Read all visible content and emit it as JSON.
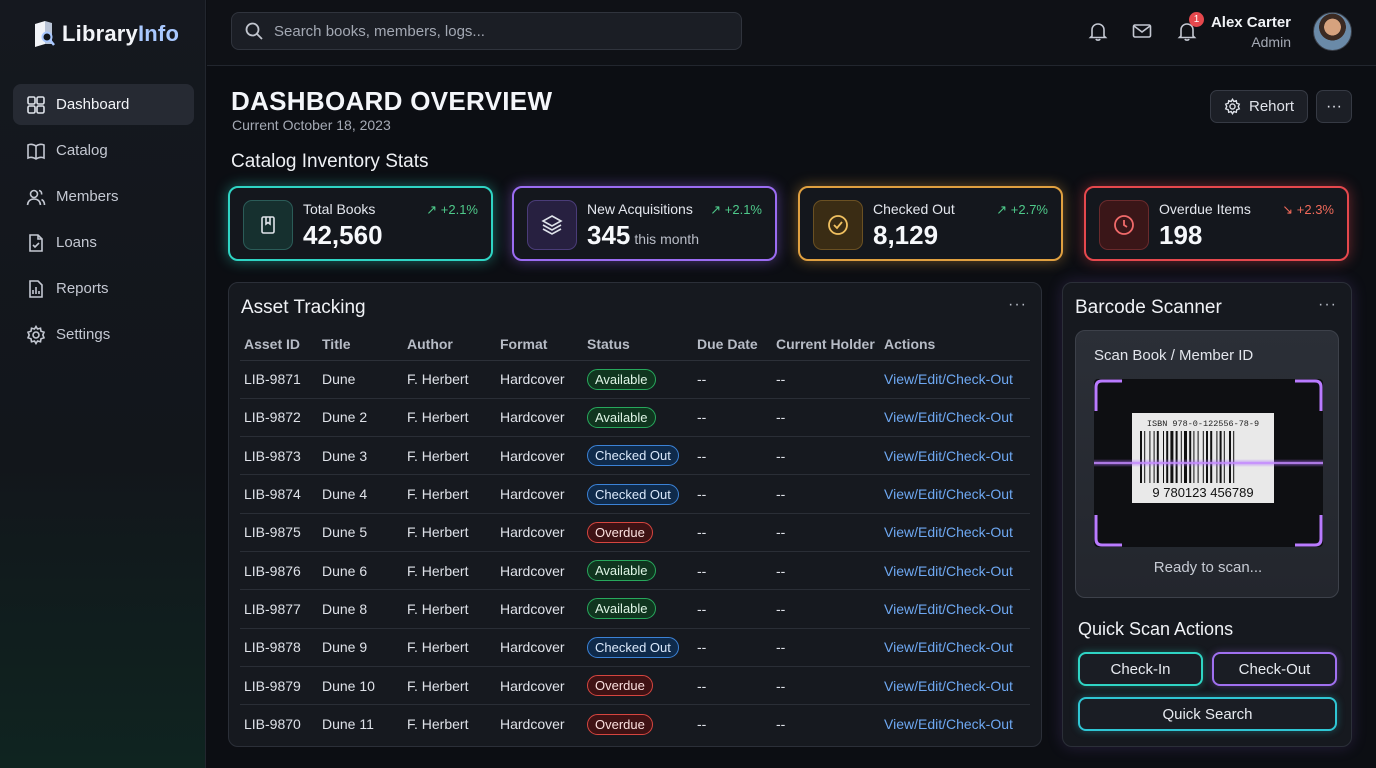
{
  "app": {
    "logo_main": "Library",
    "logo_accent": "Info"
  },
  "sidebar": {
    "items": [
      {
        "label": "Dashboard",
        "icon": "grid-icon",
        "active": true
      },
      {
        "label": "Catalog",
        "icon": "book-icon"
      },
      {
        "label": "Members",
        "icon": "users-icon"
      },
      {
        "label": "Loans",
        "icon": "document-check-icon"
      },
      {
        "label": "Reports",
        "icon": "bar-report-icon"
      },
      {
        "label": "Settings",
        "icon": "gear-icon"
      }
    ]
  },
  "header": {
    "search_placeholder": "Search books, members, logs...",
    "notification_count": "1",
    "user_name": "Alex Carter",
    "user_role": "Admin"
  },
  "page": {
    "title": "DASHBOARD OVERVIEW",
    "subtitle": "Current October 18, 2023",
    "report_button": "Rehort",
    "more_button": "···",
    "stats_title": "Catalog Inventory Stats"
  },
  "stats": [
    {
      "label": "Total Books",
      "value": "42,560",
      "unit": "",
      "trend": "↗ +2.1%",
      "color": "#2fd4c4"
    },
    {
      "label": "New Acquisitions",
      "value": "345",
      "unit": "this month",
      "trend": "↗ +2.1%",
      "color": "#9b6cf2"
    },
    {
      "label": "Checked Out",
      "value": "8,129",
      "unit": "",
      "trend": "↗ +2.7%",
      "color": "#e0a040"
    },
    {
      "label": "Overdue Items",
      "value": "198",
      "unit": "",
      "trend": "↘ +2.3%",
      "color": "#e5484d"
    }
  ],
  "assets": {
    "title": "Asset Tracking",
    "more": "···",
    "columns": [
      "Asset ID",
      "Title",
      "Author",
      "Format",
      "Status",
      "Due Date",
      "Current Holder",
      "Actions"
    ],
    "rows": [
      {
        "id": "LIB-9871",
        "title": "Dune",
        "author": "F. Herbert",
        "format": "Hardcover",
        "status": "Available",
        "due": "--",
        "holder": "--",
        "action": "View/Edit/Check-Out"
      },
      {
        "id": "LIB-9872",
        "title": "Dune 2",
        "author": "F. Herbert",
        "format": "Hardcover",
        "status": "Available",
        "due": "--",
        "holder": "--",
        "action": "View/Edit/Check-Out"
      },
      {
        "id": "LIB-9873",
        "title": "Dune 3",
        "author": "F. Herbert",
        "format": "Hardcover",
        "status": "Checked Out",
        "due": "--",
        "holder": "--",
        "action": "View/Edit/Check-Out"
      },
      {
        "id": "LIB-9874",
        "title": "Dune 4",
        "author": "F. Herbert",
        "format": "Hardcover",
        "status": "Checked Out",
        "due": "--",
        "holder": "--",
        "action": "View/Edit/Check-Out"
      },
      {
        "id": "LIB-9875",
        "title": "Dune 5",
        "author": "F. Herbert",
        "format": "Hardcover",
        "status": "Overdue",
        "due": "--",
        "holder": "--",
        "action": "View/Edit/Check-Out"
      },
      {
        "id": "LIB-9876",
        "title": "Dune 6",
        "author": "F. Herbert",
        "format": "Hardcover",
        "status": "Available",
        "due": "--",
        "holder": "--",
        "action": "View/Edit/Check-Out"
      },
      {
        "id": "LIB-9877",
        "title": "Dune 8",
        "author": "F. Herbert",
        "format": "Hardcover",
        "status": "Available",
        "due": "--",
        "holder": "--",
        "action": "View/Edit/Check-Out"
      },
      {
        "id": "LIB-9878",
        "title": "Dune 9",
        "author": "F. Herbert",
        "format": "Hardcover",
        "status": "Checked Out",
        "due": "--",
        "holder": "--",
        "action": "View/Edit/Check-Out"
      },
      {
        "id": "LIB-9879",
        "title": "Dune 10",
        "author": "F. Herbert",
        "format": "Hardcover",
        "status": "Overdue",
        "due": "--",
        "holder": "--",
        "action": "View/Edit/Check-Out"
      },
      {
        "id": "LIB-9870",
        "title": "Dune 11",
        "author": "F. Herbert",
        "format": "Hardcover",
        "status": "Overdue",
        "due": "--",
        "holder": "--",
        "action": "View/Edit/Check-Out"
      }
    ]
  },
  "scanner": {
    "title": "Barcode Scanner",
    "more": "···",
    "scan_label": "Scan Book / Member ID",
    "barcode_top": "ISBN 978-0-122556-78-9",
    "barcode_digits": "9 780123 456789",
    "status": "Ready to scan...",
    "quick_title": "Quick Scan Actions",
    "checkin": "Check-In",
    "checkout": "Check-Out",
    "quick_search": "Quick Search"
  }
}
